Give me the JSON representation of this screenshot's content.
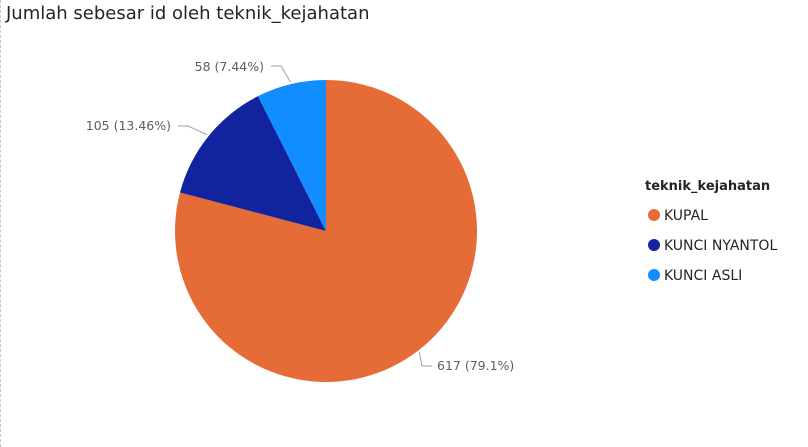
{
  "chart_data": {
    "type": "pie",
    "title": "Jumlah sebesar id oleh teknik_kejahatan",
    "legend_title": "teknik_kejahatan",
    "legend_position": "right",
    "categories": [
      "KUPAL",
      "KUNCI NYANTOL",
      "KUNCI ASLI"
    ],
    "values": [
      617,
      105,
      58
    ],
    "data_labels": [
      "617 (79.1%)",
      "105 (13.46%)",
      "58 (7.44%)"
    ],
    "colors": [
      "#E66C37",
      "#12239E",
      "#118DFF"
    ]
  }
}
